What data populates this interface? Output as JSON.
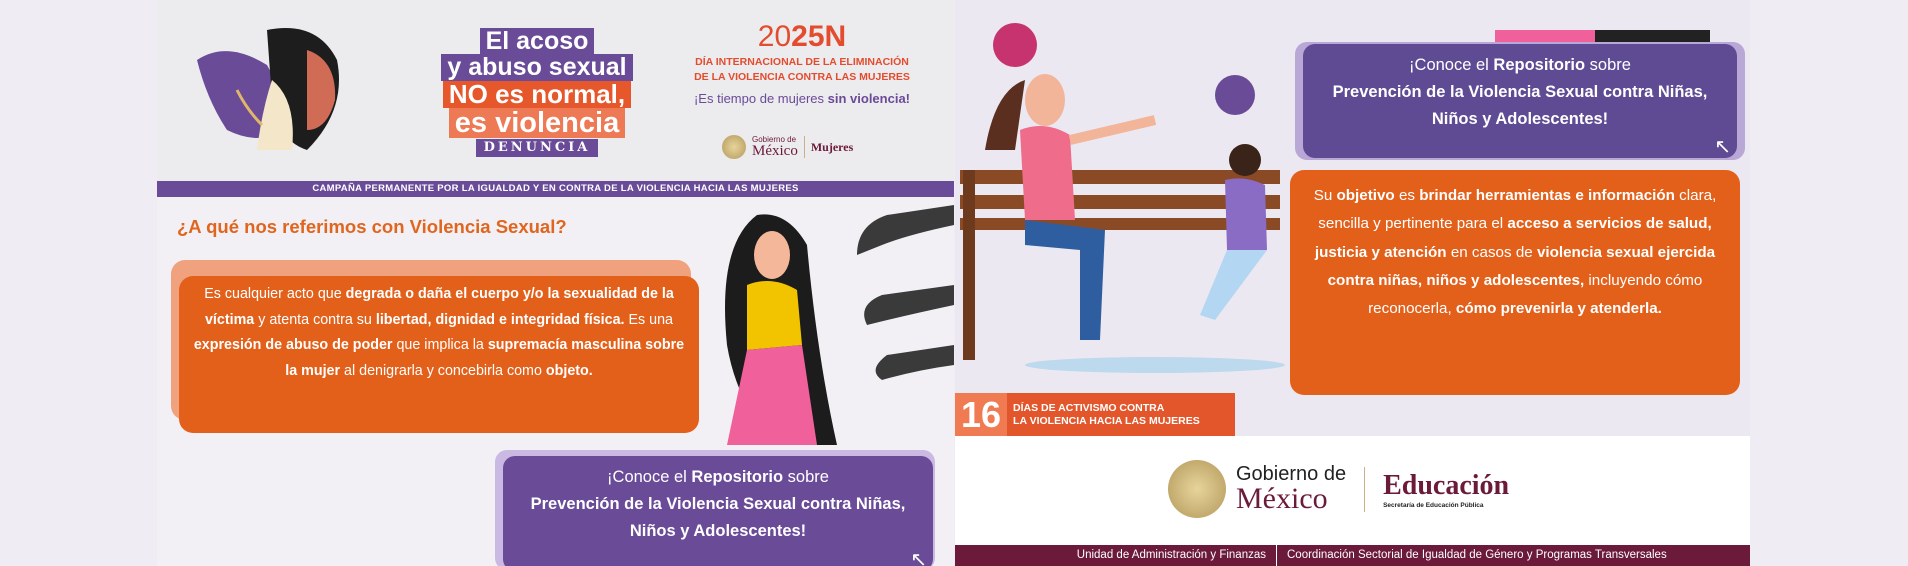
{
  "left_panel": {
    "slogan": {
      "line1": "El acoso",
      "line2": "y abuso sexual",
      "line3": "NO es normal,",
      "line4": "es violencia",
      "line5": "DENUNCIA"
    },
    "event": {
      "year_pre": "20",
      "year_bold": "25N",
      "subtitle1": "DÍA INTERNACIONAL DE LA ELIMINACIÓN",
      "subtitle2": "DE LA VIOLENCIA CONTRA LAS MUJERES",
      "tagline_pre": "¡Es tiempo de mujeres ",
      "tagline_bold": "sin violencia!"
    },
    "logos": {
      "gob_small": "Gobierno de",
      "gob_big": "México",
      "mujeres": "Mujeres"
    },
    "strip": "CAMPAÑA PERMANENTE POR LA IGUALDAD Y EN CONTRA DE LA VIOLENCIA HACIA LAS MUJERES",
    "heading": "¿A qué nos referimos con Violencia Sexual?",
    "definition": [
      {
        "t": "Es cualquier acto que ",
        "b": false
      },
      {
        "t": "degrada o daña el cuerpo y/o la sexualidad de la víctima",
        "b": true
      },
      {
        "t": " y atenta contra su ",
        "b": false
      },
      {
        "t": "libertad, dignidad e integridad física.",
        "b": true
      },
      {
        "t": " Es una ",
        "b": false
      },
      {
        "t": "expresión de abuso de poder",
        "b": true
      },
      {
        "t": " que implica la ",
        "b": false
      },
      {
        "t": "supremacía masculina sobre la mujer",
        "b": true
      },
      {
        "t": " al denigrarla y concebirla como ",
        "b": false
      },
      {
        "t": "objeto.",
        "b": true
      }
    ],
    "repo": {
      "a": "¡Conoce el ",
      "b": "Repositorio",
      "c": " sobre",
      "d": "Prevención de la Violencia Sexual contra Niñas, Niños y Adolescentes!"
    }
  },
  "right_panel": {
    "repo": {
      "a": "¡Conoce el ",
      "b": "Repositorio",
      "c": " sobre",
      "d": "Prevención de la Violencia Sexual contra Niñas, Niños y Adolescentes!"
    },
    "objective": [
      {
        "t": "Su ",
        "b": false
      },
      {
        "t": "objetivo",
        "b": true
      },
      {
        "t": " es ",
        "b": false
      },
      {
        "t": "brindar herramientas e información",
        "b": true
      },
      {
        "t": " clara, sencilla y pertinente para el ",
        "b": false
      },
      {
        "t": "acceso a servicios de salud, justicia y atención",
        "b": true
      },
      {
        "t": " en casos de ",
        "b": false
      },
      {
        "t": "violencia sexual ejercida contra niñas, niños y adolescentes,",
        "b": true
      },
      {
        "t": " incluyendo cómo reconocerla, ",
        "b": false
      },
      {
        "t": "cómo prevenirla y atenderla.",
        "b": true
      }
    ],
    "activism": {
      "number": "16",
      "line1": "DÍAS DE ACTIVISMO CONTRA",
      "line2": "LA VIOLENCIA HACIA LAS MUJERES"
    },
    "logos": {
      "gob_small": "Gobierno de",
      "gob_big": "México",
      "edu": "Educación",
      "edu_sub": "Secretaría de Educación Pública"
    },
    "footer": [
      "Unidad de Administración y Finanzas",
      "Coordinación Sectorial de Igualdad de Género y Programas Transversales"
    ]
  },
  "colors": {
    "purple": "#6a4b98",
    "orange": "#e3601a",
    "maroon": "#6b1a3a"
  }
}
